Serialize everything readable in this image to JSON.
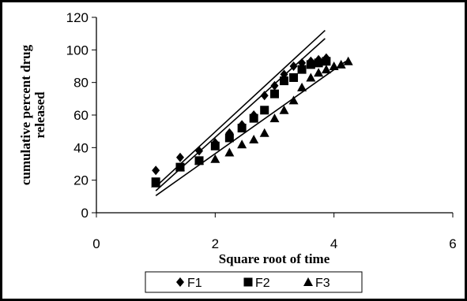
{
  "chart_data": {
    "type": "scatter",
    "title": "",
    "xlabel": "Square root of time",
    "ylabel": "cumulative percent drug released",
    "ylabel_lines": [
      "cumulative percent drug",
      "released"
    ],
    "xlim": [
      0,
      6
    ],
    "ylim": [
      0,
      120
    ],
    "x_ticks": [
      "0",
      "2",
      "4",
      "6"
    ],
    "y_ticks": [
      "0",
      "20",
      "40",
      "60",
      "80",
      "100",
      "120"
    ],
    "grid": false,
    "legend_position": "bottom",
    "series": [
      {
        "name": "F1",
        "marker": "diamond",
        "color": "#000000",
        "x": [
          1.0,
          1.41,
          1.73,
          2.0,
          2.24,
          2.45,
          2.65,
          2.83,
          3.0,
          3.16,
          3.32,
          3.46,
          3.61,
          3.74,
          3.87
        ],
        "y": [
          26,
          34,
          38,
          43,
          49,
          54,
          60,
          72,
          78,
          85,
          90,
          92,
          93,
          94,
          95
        ],
        "trendline": [
          [
            1.0,
            16.0
          ],
          [
            3.85,
            112.0
          ]
        ]
      },
      {
        "name": "F2",
        "marker": "square",
        "color": "#000000",
        "x": [
          1.0,
          1.41,
          1.73,
          2.0,
          2.24,
          2.45,
          2.65,
          2.83,
          3.0,
          3.16,
          3.32,
          3.46,
          3.61,
          3.74,
          3.87
        ],
        "y": [
          19,
          28,
          32,
          41,
          46,
          52,
          58,
          63,
          73,
          81,
          83,
          88,
          91,
          92,
          93
        ],
        "trendline": [
          [
            1.0,
            13.5
          ],
          [
            3.85,
            107.0
          ]
        ]
      },
      {
        "name": "F3",
        "marker": "triangle",
        "color": "#000000",
        "x": [
          1.0,
          1.41,
          1.73,
          2.0,
          2.24,
          2.45,
          2.65,
          2.83,
          3.0,
          3.16,
          3.32,
          3.46,
          3.61,
          3.74,
          3.87,
          4.0,
          4.12,
          4.24
        ],
        "y": [
          18,
          28,
          32,
          33,
          37,
          42,
          45,
          49,
          58,
          63,
          69,
          77,
          83,
          86,
          88,
          90,
          91,
          93
        ],
        "trendline": [
          [
            1.0,
            10.5
          ],
          [
            4.2,
            93.0
          ]
        ]
      }
    ]
  }
}
